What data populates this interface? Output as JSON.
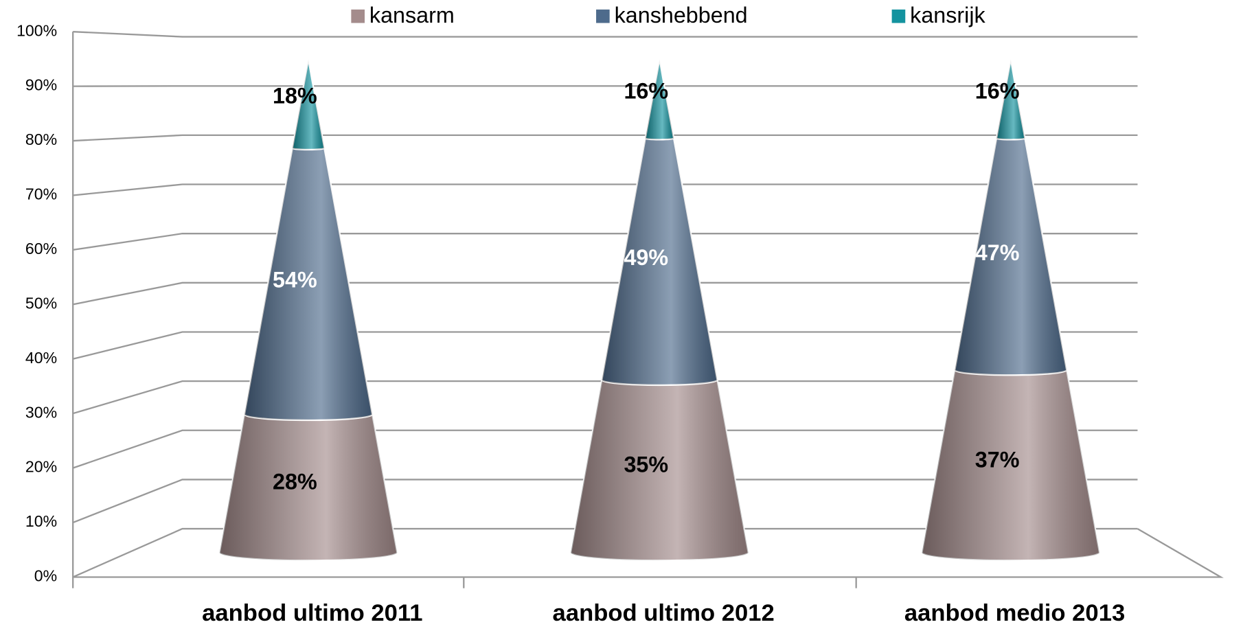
{
  "chart_data": {
    "type": "cone",
    "categories": [
      "aanbod ultimo 2011",
      "aanbod ultimo 2012",
      "aanbod medio 2013"
    ],
    "series": [
      {
        "name": "kansarm",
        "color": "#a48c8c",
        "values": [
          28,
          35,
          37
        ],
        "value_labels": [
          "28%",
          "35%",
          "37%"
        ]
      },
      {
        "name": "kanshebbend",
        "color": "#4e6b8c",
        "values": [
          54,
          49,
          47
        ],
        "value_labels": [
          "54%",
          "49%",
          "47%"
        ]
      },
      {
        "name": "kansrijk",
        "color": "#14939f",
        "values": [
          18,
          16,
          16
        ],
        "value_labels": [
          "18%",
          "16%",
          "16%"
        ]
      }
    ],
    "stacked": true,
    "ylim": [
      0,
      100
    ],
    "yticks": [
      {
        "value": 0,
        "label": "0%"
      },
      {
        "value": 10,
        "label": "10%"
      },
      {
        "value": 20,
        "label": "20%"
      },
      {
        "value": 30,
        "label": "30%"
      },
      {
        "value": 40,
        "label": "40%"
      },
      {
        "value": 50,
        "label": "50%"
      },
      {
        "value": 60,
        "label": "60%"
      },
      {
        "value": 70,
        "label": "70%"
      },
      {
        "value": 80,
        "label": "80%"
      },
      {
        "value": 90,
        "label": "90%"
      },
      {
        "value": 100,
        "label": "100%"
      }
    ],
    "grid": true,
    "legend": "top"
  }
}
